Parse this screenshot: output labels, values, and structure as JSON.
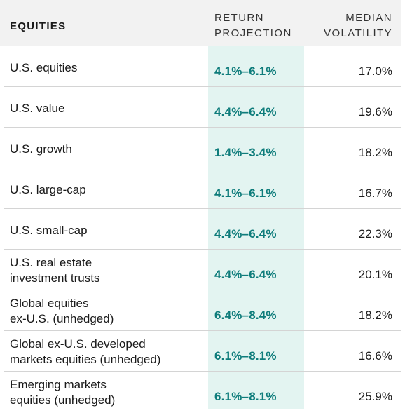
{
  "header": {
    "category": "EQUITIES",
    "return_line1": "RETURN",
    "return_line2": "PROJECTION",
    "volatility_line1": "MEDIAN",
    "volatility_line2": "VOLATILITY"
  },
  "rows": [
    {
      "label_line1": "U.S. equities",
      "label_line2": "",
      "return": "4.1%–6.1%",
      "volatility": "17.0%"
    },
    {
      "label_line1": "U.S. value",
      "label_line2": "",
      "return": "4.4%–6.4%",
      "volatility": "19.6%"
    },
    {
      "label_line1": "U.S. growth",
      "label_line2": "",
      "return": "1.4%–3.4%",
      "volatility": "18.2%"
    },
    {
      "label_line1": "U.S. large-cap",
      "label_line2": "",
      "return": "4.1%–6.1%",
      "volatility": "16.7%"
    },
    {
      "label_line1": "U.S. small-cap",
      "label_line2": "",
      "return": "4.4%–6.4%",
      "volatility": "22.3%"
    },
    {
      "label_line1": "U.S. real estate",
      "label_line2": "investment trusts",
      "return": "4.4%–6.4%",
      "volatility": "20.1%"
    },
    {
      "label_line1": "Global equities",
      "label_line2": "ex-U.S. (unhedged)",
      "return": "6.4%–8.4%",
      "volatility": "18.2%"
    },
    {
      "label_line1": "Global ex-U.S. developed",
      "label_line2": "markets equities (unhedged)",
      "return": "6.1%–8.1%",
      "volatility": "16.6%"
    },
    {
      "label_line1": "Emerging markets",
      "label_line2": "equities (unhedged)",
      "return": "6.1%–8.1%",
      "volatility": "25.9%"
    }
  ],
  "colors": {
    "return_text": "#0e7c7b",
    "highlight_column": "#e3f4f1",
    "header_background": "#f2f2f2"
  }
}
